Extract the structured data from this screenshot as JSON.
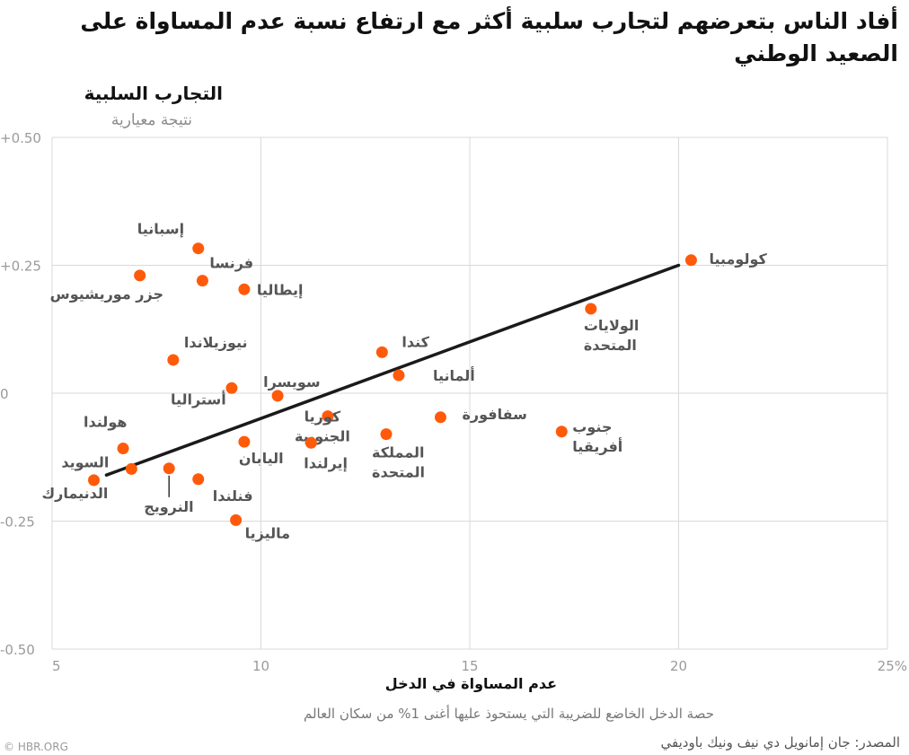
{
  "title": "أفاد الناس بتعرضهم لتجارب سلبية أكثر مع ارتفاع نسبة عدم المساواة على الصعيد الوطني",
  "logo": "© HBR.ORG",
  "source": "المصدر: جان إمانويل دي نيف ونيك باوديفي",
  "colors": {
    "point": "#ff5a0a",
    "trend": "#1a1a1a",
    "grid": "#d9d9d9",
    "tick": "#9a9a9a",
    "point_label": "#555555"
  },
  "chart_data": {
    "type": "scatter",
    "ylabel": "التجارب السلبية",
    "ylabel_sub": "نتيجة معيارية",
    "xlabel": "عدم المساواة في الدخل",
    "xlabel_sub": "حصة الدخل الخاضع للضريبة التي يستحوذ عليها أغنى 1% من سكان العالم",
    "xlim": [
      5,
      25
    ],
    "ylim": [
      -0.5,
      0.5
    ],
    "x_ticks": [
      5,
      10,
      15,
      20,
      25
    ],
    "x_tick_labels": [
      "5",
      "10",
      "15",
      "20",
      "25%"
    ],
    "y_ticks": [
      0.5,
      0.25,
      0,
      -0.25,
      -0.5
    ],
    "y_tick_labels": [
      "+0.50",
      "+0.25",
      "0",
      "-0.25",
      "-0.50"
    ],
    "grid": true,
    "trend_line": {
      "x": [
        6.3,
        20.0
      ],
      "y": [
        -0.16,
        0.25
      ]
    },
    "points": [
      {
        "label": "كولومبيا",
        "x": 20.3,
        "y": 0.26
      },
      {
        "label": "الولايات\nالمتحدة",
        "x": 17.9,
        "y": 0.165
      },
      {
        "label": "جنوب\nأفريقيا",
        "x": 17.2,
        "y": -0.075
      },
      {
        "label": "سفافورة",
        "x": 14.3,
        "y": -0.047
      },
      {
        "label": "ألمانيا",
        "x": 13.3,
        "y": 0.035
      },
      {
        "label": "كندا",
        "x": 12.9,
        "y": 0.08
      },
      {
        "label": "المملكة\nالمتحدة",
        "x": 13.0,
        "y": -0.08
      },
      {
        "label": "كوريا\nالجنوبية",
        "x": 11.6,
        "y": -0.045
      },
      {
        "label": "إيرلندا",
        "x": 11.2,
        "y": -0.097
      },
      {
        "label": "سويسرا",
        "x": 10.4,
        "y": -0.005
      },
      {
        "label": "اليابان",
        "x": 9.6,
        "y": -0.095
      },
      {
        "label": "ماليزيا",
        "x": 9.4,
        "y": -0.248
      },
      {
        "label": "إيطاليا",
        "x": 9.6,
        "y": 0.203
      },
      {
        "label": "فرنسا",
        "x": 8.6,
        "y": 0.22
      },
      {
        "label": "إسبانيا",
        "x": 8.5,
        "y": 0.283
      },
      {
        "label": "أستراليا",
        "x": 9.3,
        "y": 0.01
      },
      {
        "label": "نيوزيلاندا",
        "x": 7.9,
        "y": 0.065
      },
      {
        "label": "جزر موريشيوس",
        "x": 7.1,
        "y": 0.23
      },
      {
        "label": "فنلندا",
        "x": 8.5,
        "y": -0.168
      },
      {
        "label": "النرويج",
        "x": 7.8,
        "y": -0.147
      },
      {
        "label": "هولندا",
        "x": 6.7,
        "y": -0.108
      },
      {
        "label": "السويد",
        "x": 6.9,
        "y": -0.148
      },
      {
        "label": "الدنيمارك",
        "x": 6.0,
        "y": -0.17
      }
    ]
  }
}
